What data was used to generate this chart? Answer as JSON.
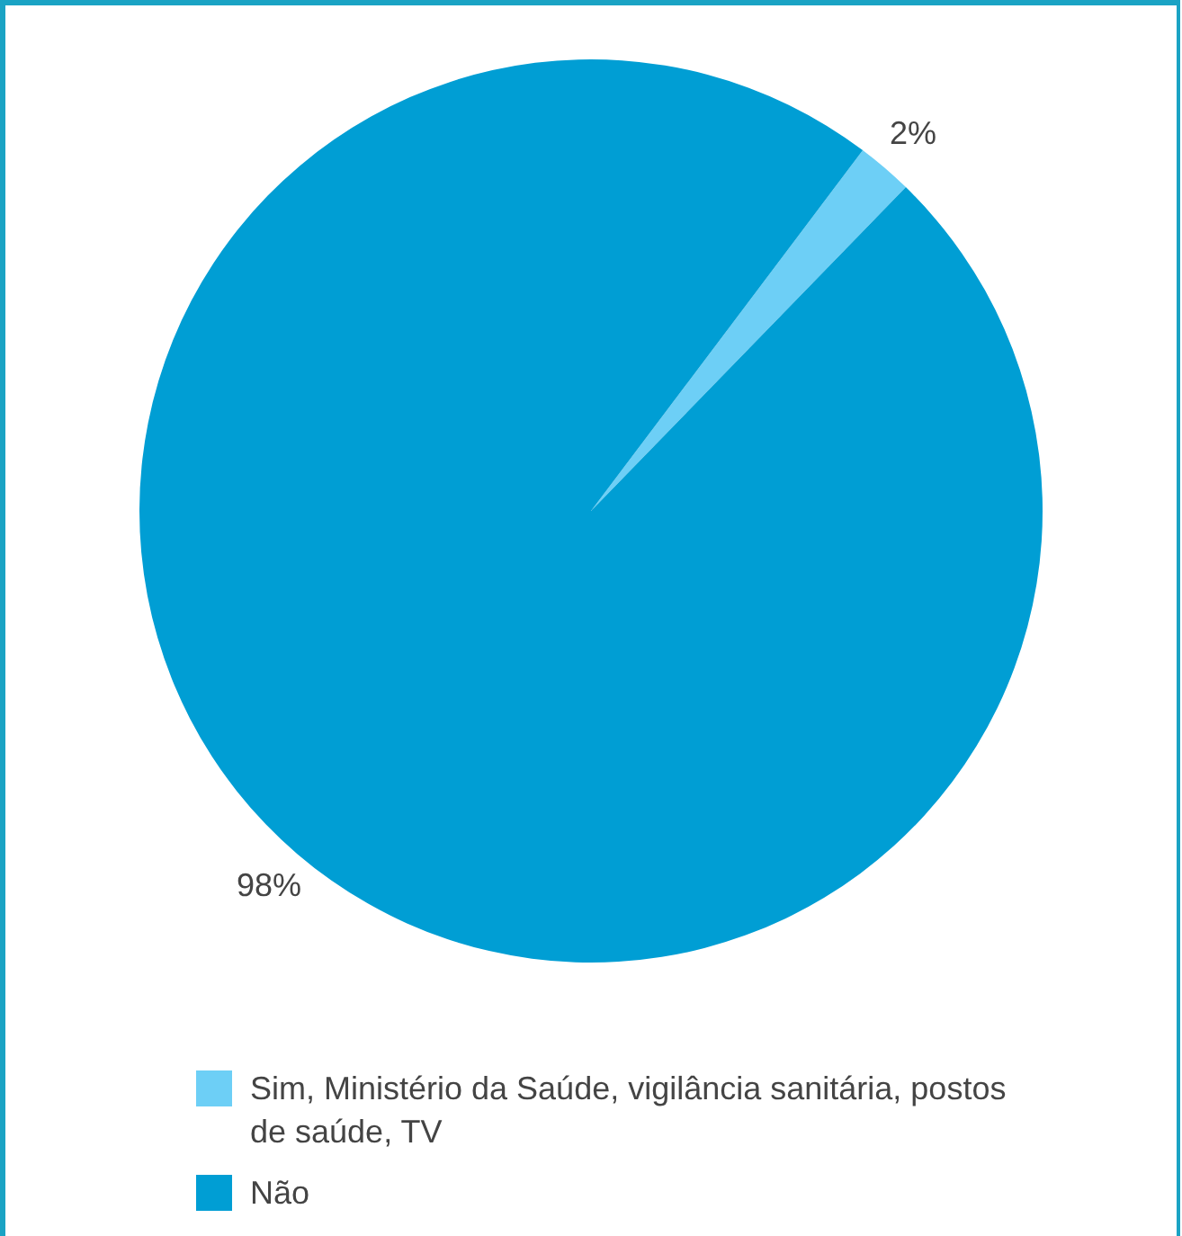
{
  "chart_data": {
    "type": "pie",
    "categories": [
      "Sim, Ministério da Saúde, vigilância sanitária, postos de saúde, TV",
      "Não"
    ],
    "values": [
      2,
      98
    ],
    "colors": [
      "#6dcff6",
      "#009ed4"
    ],
    "value_labels": [
      "2%",
      "98%"
    ],
    "legend": "bottom"
  }
}
